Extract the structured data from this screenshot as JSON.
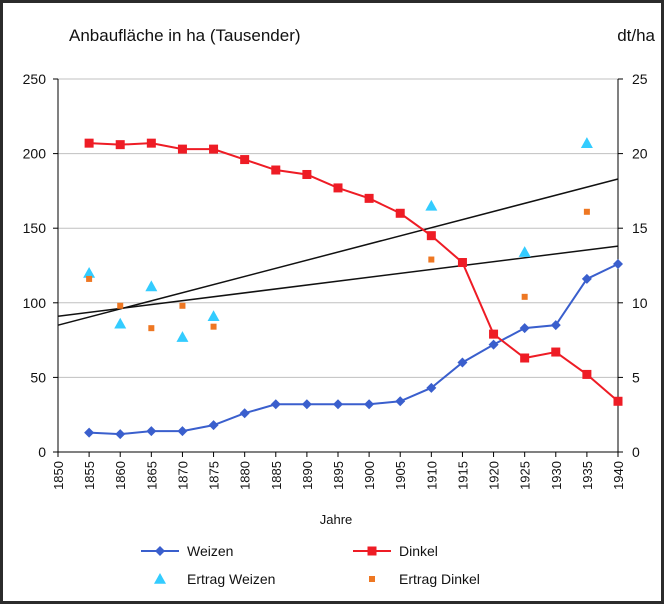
{
  "chart_data": {
    "type": "line",
    "title": "Anbaufläche in ha (Tausender)",
    "right_axis_label": "dt/ha",
    "xlabel": "Jahre",
    "x_ticks": [
      1850,
      1855,
      1860,
      1865,
      1870,
      1875,
      1880,
      1885,
      1890,
      1895,
      1900,
      1905,
      1910,
      1915,
      1920,
      1925,
      1930,
      1935,
      1940
    ],
    "xlim": [
      1850,
      1940
    ],
    "ylim_left": [
      0,
      250
    ],
    "y_ticks_left": [
      0,
      50,
      100,
      150,
      200,
      250
    ],
    "ylim_right": [
      0,
      25
    ],
    "y_ticks_right": [
      0,
      5,
      10,
      15,
      20,
      25
    ],
    "grid": "horizontal",
    "legend_position": "bottom",
    "series": [
      {
        "name": "Weizen",
        "axis": "left",
        "kind": "line-diamond",
        "color": "#3a5fcd",
        "x": [
          1855,
          1860,
          1865,
          1870,
          1875,
          1880,
          1885,
          1890,
          1895,
          1900,
          1905,
          1910,
          1915,
          1920,
          1925,
          1930,
          1935,
          1940
        ],
        "values": [
          13,
          12,
          14,
          14,
          18,
          26,
          32,
          32,
          32,
          32,
          34,
          43,
          60,
          72,
          83,
          85,
          116,
          126
        ]
      },
      {
        "name": "Dinkel",
        "axis": "left",
        "kind": "line-square",
        "color": "#ee1c25",
        "x": [
          1855,
          1860,
          1865,
          1870,
          1875,
          1880,
          1885,
          1890,
          1895,
          1900,
          1905,
          1910,
          1915,
          1920,
          1925,
          1930,
          1935,
          1940
        ],
        "values": [
          207,
          206,
          207,
          203,
          203,
          196,
          189,
          186,
          177,
          170,
          160,
          145,
          127,
          79,
          63,
          67,
          52,
          34
        ]
      },
      {
        "name": "Ertrag Weizen",
        "axis": "right",
        "kind": "triangle",
        "color": "#33ccff",
        "x": [
          1855,
          1860,
          1865,
          1870,
          1875,
          1910,
          1925,
          1935
        ],
        "values": [
          12,
          8.6,
          11.1,
          7.7,
          9.1,
          16.5,
          13.4,
          20.7
        ]
      },
      {
        "name": "Ertrag Dinkel",
        "axis": "right",
        "kind": "square-small",
        "color": "#ee7722",
        "x": [
          1855,
          1860,
          1865,
          1870,
          1875,
          1910,
          1925,
          1935
        ],
        "values": [
          11.6,
          9.8,
          8.3,
          9.8,
          8.4,
          12.9,
          10.4,
          16.1
        ]
      }
    ],
    "trendlines": [
      {
        "x": [
          1850,
          1940
        ],
        "values": [
          8.5,
          18.3
        ],
        "axis": "right",
        "color": "#111111"
      },
      {
        "x": [
          1850,
          1940
        ],
        "values": [
          9.1,
          13.8
        ],
        "axis": "right",
        "color": "#111111"
      }
    ],
    "legend": [
      "Weizen",
      "Dinkel",
      "Ertrag Weizen",
      "Ertrag Dinkel"
    ]
  }
}
